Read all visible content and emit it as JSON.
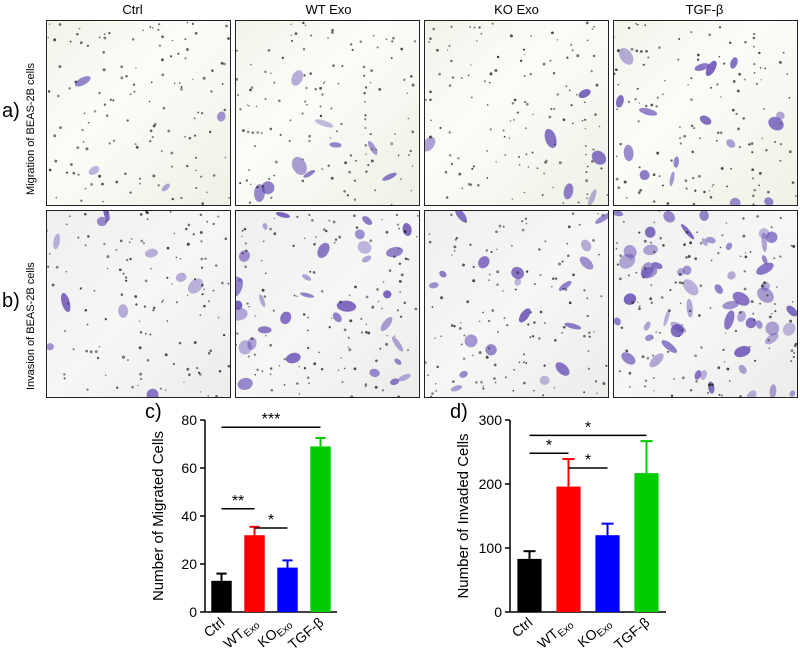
{
  "columns": [
    "Ctrl",
    "WT Exo",
    "KO Exo",
    "TGF-β"
  ],
  "rows": [
    {
      "letter": "a)",
      "label": "Migration of BEAS-2B cells"
    },
    {
      "letter": "b)",
      "label": "Invasion of BEAS-2B cells"
    }
  ],
  "colors": {
    "ctrl": "#000000",
    "wt": "#ff0000",
    "ko": "#0000ff",
    "tgf": "#00cc00",
    "stain": "#5b3fb0",
    "nuclei": "#2a2a2a"
  },
  "chart_data": [
    {
      "type": "bar",
      "panel": "c)",
      "ylabel": "Number of Migrated Cells",
      "ylim": [
        0,
        80
      ],
      "yticks": [
        0,
        20,
        40,
        60,
        80
      ],
      "categories": [
        {
          "main": "Ctrl",
          "sub": ""
        },
        {
          "main": "WT",
          "sub": "Exo"
        },
        {
          "main": "KO",
          "sub": "Exo"
        },
        {
          "main": "TGF-β",
          "sub": ""
        }
      ],
      "values": [
        13,
        32,
        18.5,
        69
      ],
      "errors": [
        3,
        3.5,
        3,
        3.5
      ],
      "significance": [
        {
          "from": 0,
          "to": 1,
          "label": "**",
          "y": 43
        },
        {
          "from": 1,
          "to": 2,
          "label": "*",
          "y": 35
        },
        {
          "from": 0,
          "to": 3,
          "label": "***",
          "y": 77
        }
      ]
    },
    {
      "type": "bar",
      "panel": "d)",
      "ylabel": "Number of Invaded Cells",
      "ylim": [
        0,
        300
      ],
      "yticks": [
        0,
        100,
        200,
        300
      ],
      "categories": [
        {
          "main": "Ctrl",
          "sub": ""
        },
        {
          "main": "WT",
          "sub": "Exo"
        },
        {
          "main": "KO",
          "sub": "Exo"
        },
        {
          "main": "TGF-β",
          "sub": ""
        }
      ],
      "values": [
        83,
        196,
        120,
        217
      ],
      "errors": [
        12,
        43,
        18,
        50
      ],
      "significance": [
        {
          "from": 0,
          "to": 1,
          "label": "*",
          "y": 248
        },
        {
          "from": 1,
          "to": 2,
          "label": "*",
          "y": 225
        },
        {
          "from": 0,
          "to": 3,
          "label": "*",
          "y": 276
        }
      ]
    }
  ]
}
